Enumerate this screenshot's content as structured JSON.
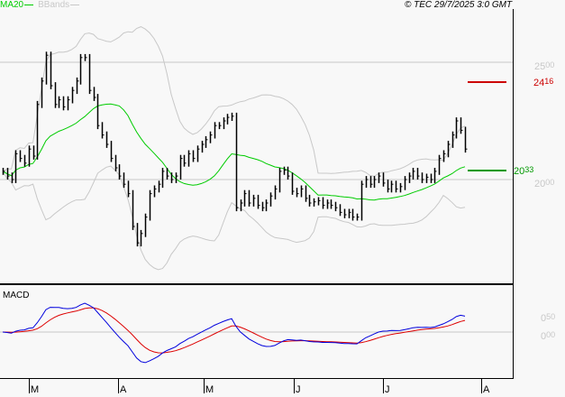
{
  "chart_data": {
    "type": "ohlc",
    "header": {
      "copyright": "© TEC 29/7/2025 3:0 GMT"
    },
    "legend": [
      {
        "name": "MA20",
        "color": "#00cc00"
      },
      {
        "name": "BBands",
        "color": "#c8c8c8"
      }
    ],
    "months": [
      "M",
      "A",
      "M",
      "J",
      "J",
      "A"
    ],
    "price_axis": {
      "ticks": [
        "25.00",
        "20.00"
      ],
      "ylim": [
        16.2,
        28.0
      ],
      "grid": true
    },
    "markers": {
      "resistance": {
        "value": "24.16",
        "color": "#cc0000"
      },
      "ma20_last": {
        "value": "20.33",
        "color": "#009900"
      }
    },
    "closes": [
      20.35,
      20.15,
      20.0,
      21.1,
      20.9,
      20.7,
      21.3,
      21.0,
      23.2,
      24.2,
      25.3,
      24.0,
      23.2,
      23.4,
      23.1,
      23.4,
      23.8,
      24.2,
      25.2,
      25.2,
      23.8,
      23.5,
      22.3,
      21.9,
      21.5,
      20.9,
      20.5,
      20.15,
      19.8,
      19.4,
      18.0,
      17.3,
      17.7,
      18.4,
      19.4,
      19.6,
      19.8,
      20.35,
      20.15,
      20.0,
      20.15,
      20.9,
      20.7,
      21.1,
      20.9,
      21.3,
      21.5,
      21.7,
      21.9,
      22.3,
      22.3,
      22.5,
      22.65,
      22.7,
      18.8,
      19.0,
      19.4,
      19.0,
      19.2,
      18.9,
      18.8,
      19.0,
      19.3,
      19.6,
      20.35,
      20.4,
      20.15,
      19.5,
      19.4,
      19.6,
      19.2,
      19.0,
      19.05,
      19.1,
      18.9,
      19.0,
      18.9,
      18.8,
      18.6,
      18.5,
      18.6,
      18.4,
      18.4,
      19.8,
      20.0,
      19.8,
      20.0,
      20.15,
      19.85,
      19.6,
      19.8,
      19.6,
      19.7,
      20.0,
      20.15,
      20.35,
      20.15,
      20.0,
      20.1,
      20.0,
      20.35,
      20.9,
      21.1,
      21.5,
      21.9,
      22.5,
      22.1,
      21.3
    ],
    "indicator": {
      "name": "MACD",
      "ticks": [
        "0.50",
        "0.00"
      ],
      "colors": {
        "macd": "#0000dd",
        "signal": "#dd0000"
      }
    }
  }
}
